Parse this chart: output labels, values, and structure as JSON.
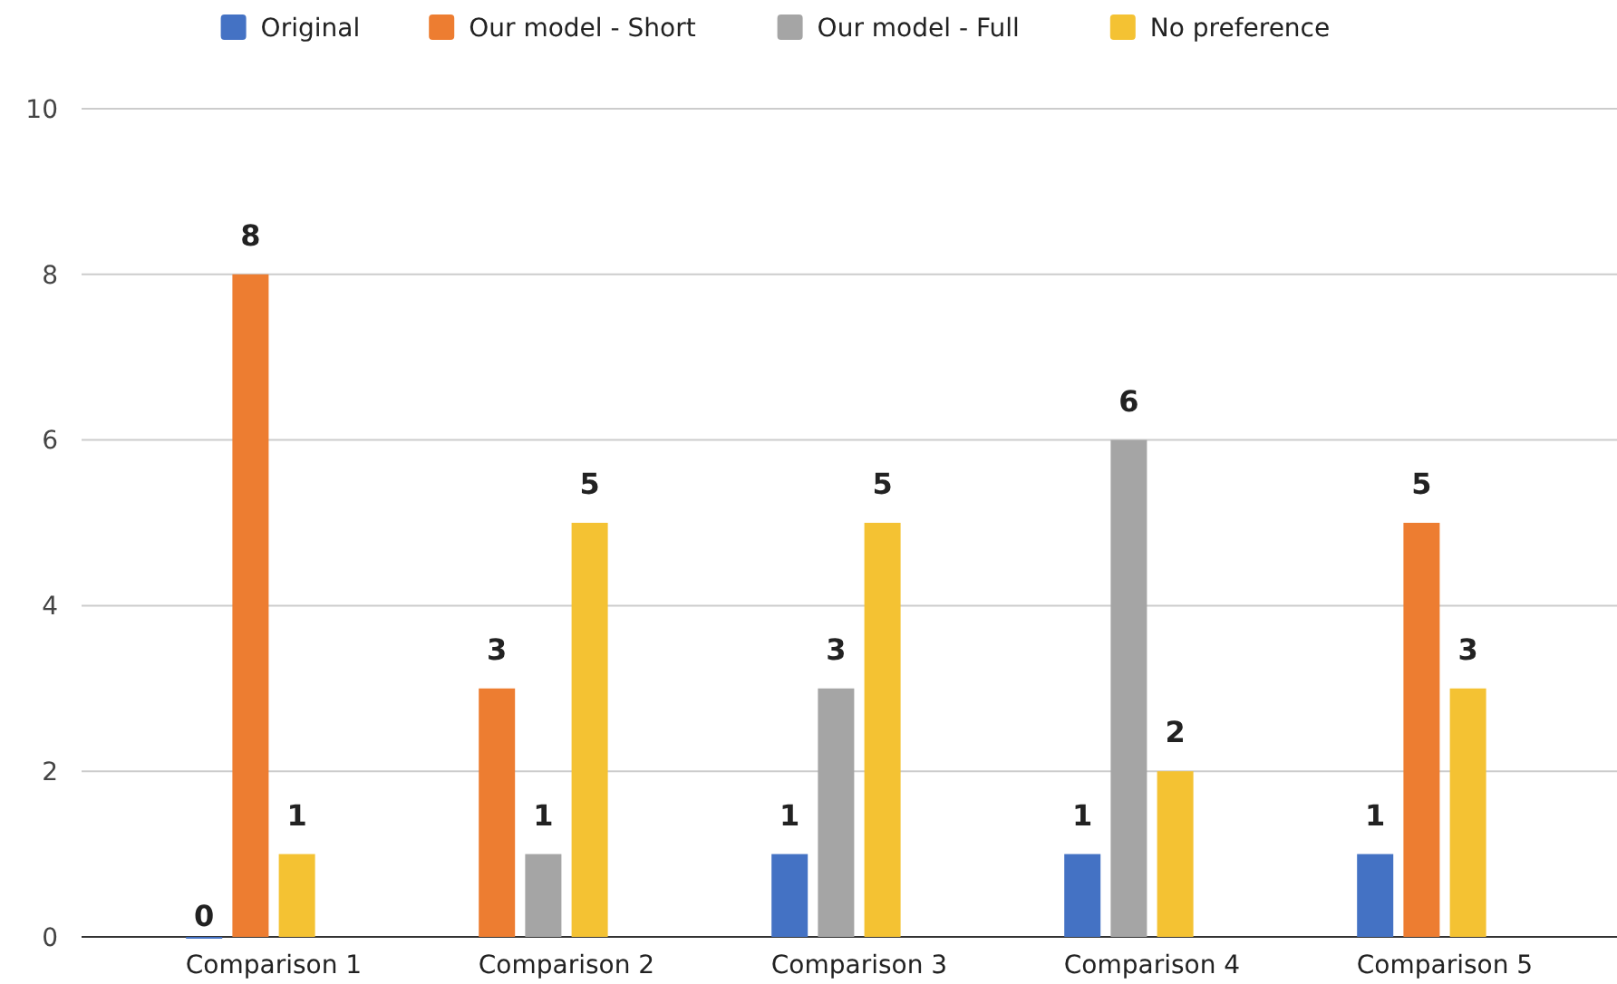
{
  "chart_data": {
    "type": "bar",
    "categories": [
      "Comparison 1",
      "Comparison 2",
      "Comparison 3",
      "Comparison 4",
      "Comparison 5"
    ],
    "ylim": [
      0,
      10
    ],
    "yticks": [
      0,
      2,
      4,
      6,
      8,
      10
    ],
    "grid": "y",
    "legend": "top",
    "data_labels": true,
    "series": [
      {
        "name": "Original",
        "color": "#4472c4",
        "values": [
          0,
          null,
          1,
          1,
          1
        ]
      },
      {
        "name": "Our model - Short",
        "color": "#ed7d31",
        "values": [
          8,
          3,
          null,
          null,
          5
        ]
      },
      {
        "name": "Our model - Full",
        "color": "#a5a5a5",
        "values": [
          null,
          1,
          3,
          6,
          null
        ]
      },
      {
        "name": "No preference",
        "color": "#f4c233",
        "values": [
          1,
          5,
          5,
          2,
          3
        ]
      }
    ]
  }
}
